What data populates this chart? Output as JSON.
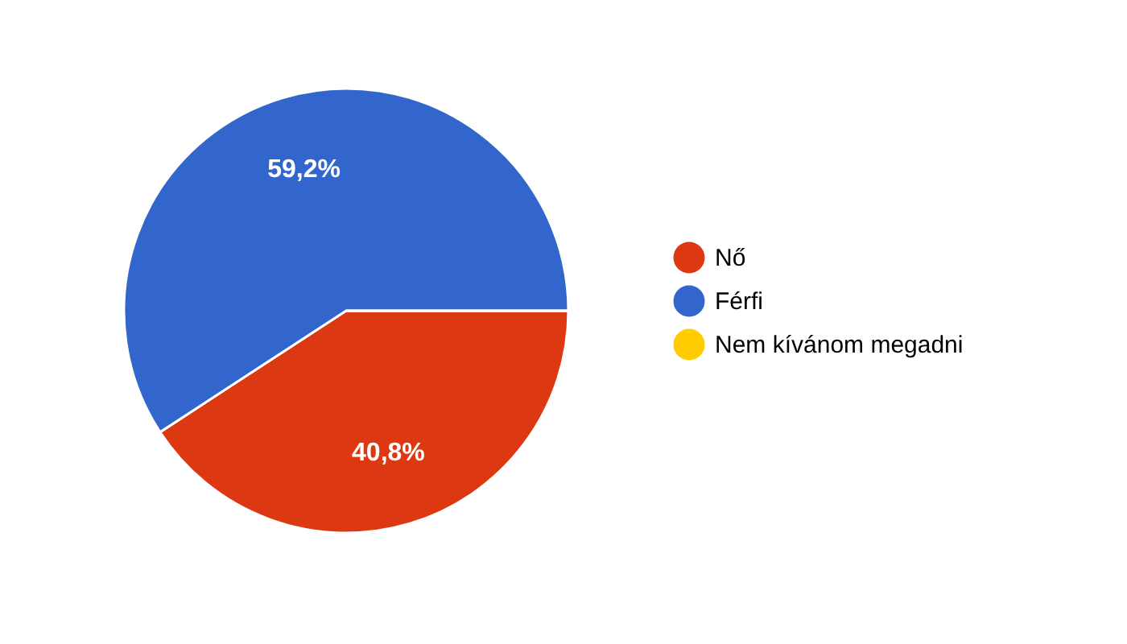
{
  "chart_data": {
    "type": "pie",
    "categories": [
      "Nő",
      "Férfi",
      "Nem kívánom megadni"
    ],
    "values": [
      40.8,
      59.2,
      0
    ],
    "colors": [
      "#dc3912",
      "#3366cc",
      "#ffcc00"
    ],
    "value_labels": [
      "40,8%",
      "59,2%",
      null
    ],
    "legend": "right"
  }
}
